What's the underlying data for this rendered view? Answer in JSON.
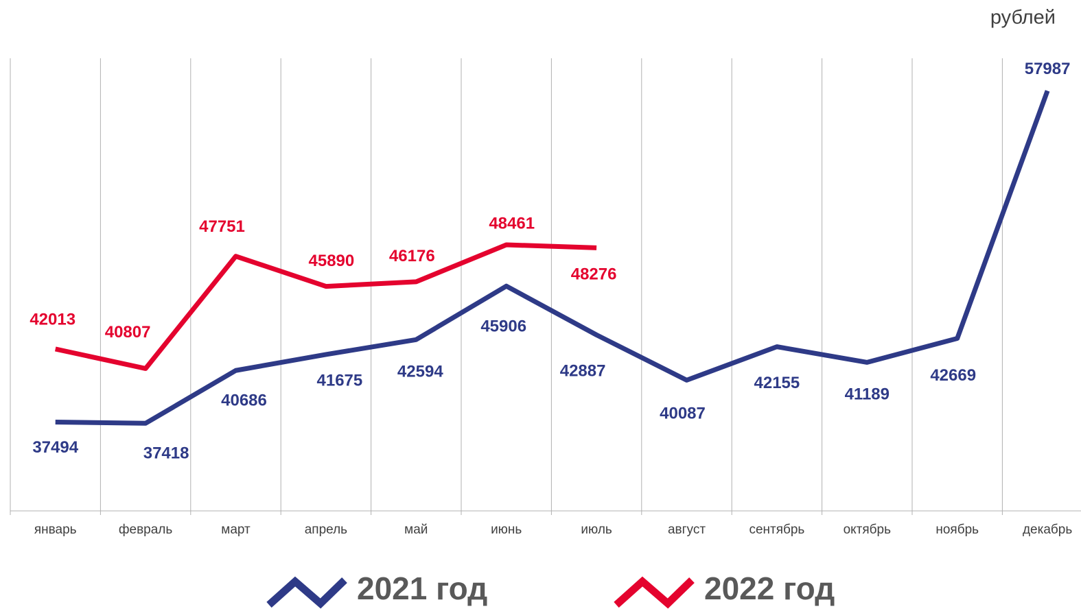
{
  "chart_data": {
    "type": "line",
    "unit_label": "рублей",
    "categories": [
      "январь",
      "февраль",
      "март",
      "апрель",
      "май",
      "июнь",
      "июль",
      "август",
      "сентябрь",
      "октябрь",
      "ноябрь",
      "декабрь"
    ],
    "series": [
      {
        "name": "2021 год",
        "color": "#2e3a87",
        "values": [
          37494,
          37418,
          40686,
          41675,
          42594,
          45906,
          42887,
          40087,
          42155,
          41189,
          42669,
          57987
        ]
      },
      {
        "name": "2022 год",
        "color": "#e4032e",
        "values": [
          42013,
          40807,
          47751,
          45890,
          46176,
          48461,
          48276,
          null,
          null,
          null,
          null,
          null
        ]
      }
    ],
    "ylim": [
      32000,
      60000
    ],
    "grid": true
  }
}
